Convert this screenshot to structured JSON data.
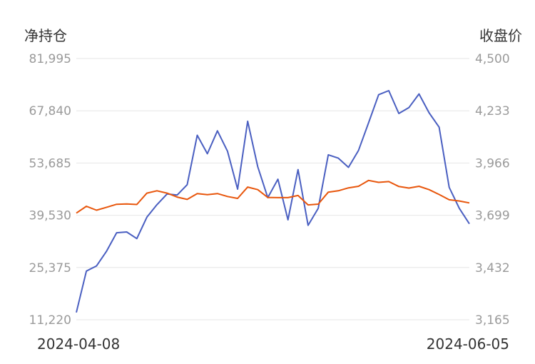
{
  "chart_data": {
    "type": "line",
    "left_axis_title": "净持仓",
    "right_axis_title": "收盘价",
    "left_ticks": [
      "81,995",
      "67,840",
      "53,685",
      "39,530",
      "25,375",
      "11,220"
    ],
    "right_ticks": [
      "4,500",
      "4,233",
      "3,966",
      "3,699",
      "3,432",
      "3,165"
    ],
    "left_range": [
      11220,
      81995
    ],
    "right_range": [
      3165,
      4500
    ],
    "x_start_label": "2024-04-08",
    "x_end_label": "2024-06-05",
    "grid": true,
    "series": [
      {
        "axis": "left",
        "color": "#4a5fc1",
        "values": [
          13200,
          24400,
          25800,
          29800,
          34800,
          35000,
          33200,
          39000,
          42400,
          45300,
          45000,
          47800,
          61200,
          56200,
          62400,
          56900,
          46600,
          65000,
          52700,
          44300,
          49300,
          38300,
          51900,
          36800,
          41400,
          55900,
          55000,
          52500,
          57100,
          64600,
          72200,
          73300,
          67100,
          68700,
          72400,
          67300,
          63400,
          47100,
          41400,
          37200
        ]
      },
      {
        "axis": "right",
        "color": "#e8560c",
        "values": [
          3710,
          3745,
          3725,
          3740,
          3755,
          3757,
          3754,
          3812,
          3824,
          3812,
          3792,
          3780,
          3810,
          3804,
          3810,
          3795,
          3785,
          3843,
          3830,
          3790,
          3789,
          3789,
          3800,
          3752,
          3756,
          3817,
          3824,
          3839,
          3847,
          3877,
          3867,
          3871,
          3846,
          3838,
          3847,
          3830,
          3805,
          3778,
          3772,
          3762
        ]
      }
    ]
  }
}
